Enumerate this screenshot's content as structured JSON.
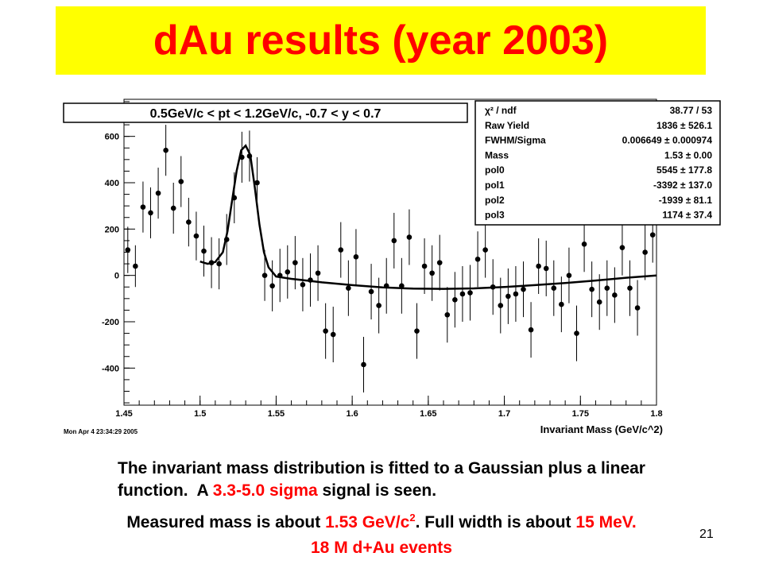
{
  "slide": {
    "title": "dAu results (year 2003)",
    "number": "21",
    "caption": {
      "line1": "The invariant mass distribution is fitted to a Gaussian plus a linear",
      "line2_a": "function.  A ",
      "line2_b": "3.3-5.0 sigma",
      "line2_c": " signal is seen.",
      "line3_a": "Measured mass is about ",
      "line3_b": "1.53 GeV/c",
      "line3_sup": "2",
      "line3_c": ". Full width is about ",
      "line3_d": "15 MeV.",
      "line4": "18 M d+Au events"
    },
    "colors": {
      "title_bg": "#ffff00",
      "title_text": "#ff0000",
      "highlight": "#ff0000"
    }
  },
  "chart_data": {
    "type": "scatter",
    "title": "0.5GeV/c < pt < 1.2GeV/c, -0.7 < y < 0.7",
    "xlabel": "Invariant Mass (GeV/c^2)",
    "ylabel": "",
    "timestamp": "Mon Apr  4 23:34:29 2005",
    "xlim": [
      1.45,
      1.8
    ],
    "ylim": [
      -560,
      760
    ],
    "grid": false,
    "x_ticks": [
      "1.45",
      "1.5",
      "1.55",
      "1.6",
      "1.65",
      "1.7",
      "1.75",
      "1.8"
    ],
    "y_ticks": [
      "-400",
      "-200",
      "0",
      "200",
      "400",
      "600"
    ],
    "stats_box": [
      {
        "label": "χ² / ndf",
        "value": "38.77 / 53"
      },
      {
        "label": "Raw Yield",
        "value": "1836 ± 526.1"
      },
      {
        "label": "FWHM/Sigma",
        "value": "0.006649 ± 0.000974"
      },
      {
        "label": "Mass",
        "value": "1.53 ± 0.00"
      },
      {
        "label": "pol0",
        "value": "5545 ± 177.8"
      },
      {
        "label": "pol1",
        "value": "-3392 ± 137.0"
      },
      {
        "label": "pol2",
        "value": "-1939 ± 81.1"
      },
      {
        "label": "pol3",
        "value": "1174 ± 37.4"
      }
    ],
    "series": [
      {
        "marker": "circle",
        "x": [
          1.4525,
          1.4575,
          1.4625,
          1.4675,
          1.4725,
          1.4775,
          1.4825,
          1.4875,
          1.4925,
          1.4975,
          1.5025,
          1.5075,
          1.5125,
          1.5175,
          1.5225,
          1.5275,
          1.5325,
          1.5375,
          1.5425,
          1.5475,
          1.5525,
          1.5575,
          1.5625,
          1.5675,
          1.5725,
          1.5775,
          1.5825,
          1.5875,
          1.5925,
          1.5975,
          1.6025,
          1.6075,
          1.6125,
          1.6175,
          1.6225,
          1.6275,
          1.6325,
          1.6375,
          1.6425,
          1.6475,
          1.6525,
          1.6575,
          1.6625,
          1.6675,
          1.6725,
          1.6775,
          1.6825,
          1.6875,
          1.6925,
          1.6975,
          1.7025,
          1.7075,
          1.7125,
          1.7175,
          1.7225,
          1.7275,
          1.7325,
          1.7375,
          1.7425,
          1.7475,
          1.7525,
          1.7575,
          1.7625,
          1.7675,
          1.7725,
          1.7775,
          1.7825,
          1.7875,
          1.7925,
          1.7975
        ],
        "y": [
          110,
          40,
          295,
          270,
          355,
          540,
          290,
          405,
          230,
          170,
          105,
          55,
          50,
          155,
          335,
          510,
          515,
          400,
          0,
          -45,
          0,
          15,
          55,
          -40,
          -20,
          10,
          -240,
          -255,
          110,
          -55,
          80,
          -385,
          -70,
          -130,
          -45,
          150,
          -45,
          165,
          -240,
          40,
          10,
          55,
          -170,
          -105,
          -80,
          -75,
          70,
          110,
          -50,
          -130,
          -90,
          -80,
          -60,
          -235,
          40,
          30,
          -55,
          -125,
          0,
          -250,
          135,
          -60,
          -115,
          -55,
          -85,
          120,
          -55,
          -140,
          100,
          175
        ],
        "err": [
          100,
          90,
          110,
          110,
          110,
          110,
          110,
          110,
          105,
          105,
          110,
          110,
          110,
          110,
          110,
          110,
          110,
          110,
          110,
          110,
          115,
          115,
          115,
          115,
          115,
          120,
          120,
          120,
          120,
          120,
          120,
          120,
          120,
          120,
          120,
          120,
          120,
          120,
          120,
          120,
          120,
          120,
          120,
          120,
          120,
          120,
          120,
          120,
          120,
          120,
          120,
          120,
          120,
          120,
          120,
          120,
          120,
          120,
          120,
          120,
          120,
          120,
          120,
          120,
          120,
          120,
          120,
          120,
          120,
          120
        ]
      },
      {
        "name": "",
        "marker": "line",
        "x": [
          1.5,
          1.505,
          1.51,
          1.515,
          1.518,
          1.521,
          1.524,
          1.527,
          1.53,
          1.533,
          1.536,
          1.539,
          1.542,
          1.545,
          1.55,
          1.56,
          1.57,
          1.58,
          1.6,
          1.62,
          1.64,
          1.66,
          1.68,
          1.7,
          1.72,
          1.74,
          1.76,
          1.78,
          1.8
        ],
        "y": [
          60,
          50,
          58,
          100,
          190,
          320,
          450,
          540,
          560,
          520,
          380,
          220,
          100,
          35,
          -5,
          -15,
          -22,
          -30,
          -42,
          -52,
          -57,
          -58,
          -56,
          -50,
          -42,
          -33,
          -22,
          -10,
          0
        ]
      }
    ]
  }
}
